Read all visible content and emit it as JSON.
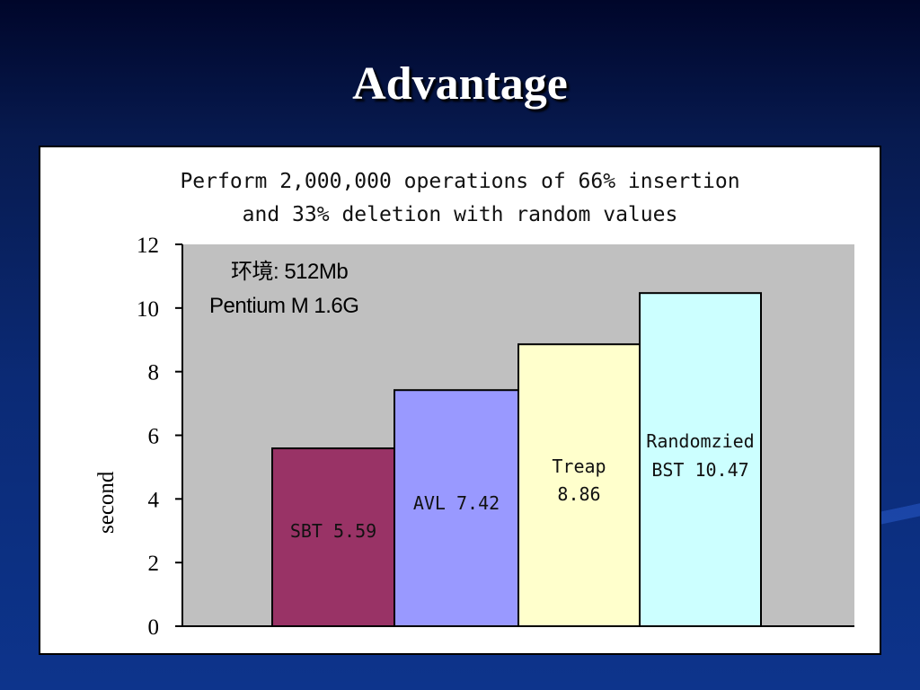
{
  "slide": {
    "title": "Advantage"
  },
  "chart_data": {
    "type": "bar",
    "title_lines": [
      "Perform 2,000,000 operations of 66% insertion",
      "and 33% deletion with random values"
    ],
    "ylabel": "second",
    "xlabel": "",
    "ylim": [
      0,
      12
    ],
    "yticks": [
      "0",
      "2",
      "4",
      "6",
      "8",
      "10",
      "12"
    ],
    "grid": false,
    "plot_background": "#c0c0c0",
    "categories": [
      "SBT",
      "AVL",
      "Treap",
      "Randomzied BST"
    ],
    "values": [
      5.59,
      7.42,
      8.86,
      10.47
    ],
    "colors": [
      "#993366",
      "#9999ff",
      "#ffffcc",
      "#ccffff"
    ],
    "data_labels": [
      [
        "SBT 5.59"
      ],
      [
        "AVL 7.42"
      ],
      [
        "Treap",
        "8.86"
      ],
      [
        "Randomzied",
        "BST 10.47"
      ]
    ],
    "annotation_lines": [
      "环境: 512Mb",
      "Pentium M 1.6G"
    ]
  }
}
